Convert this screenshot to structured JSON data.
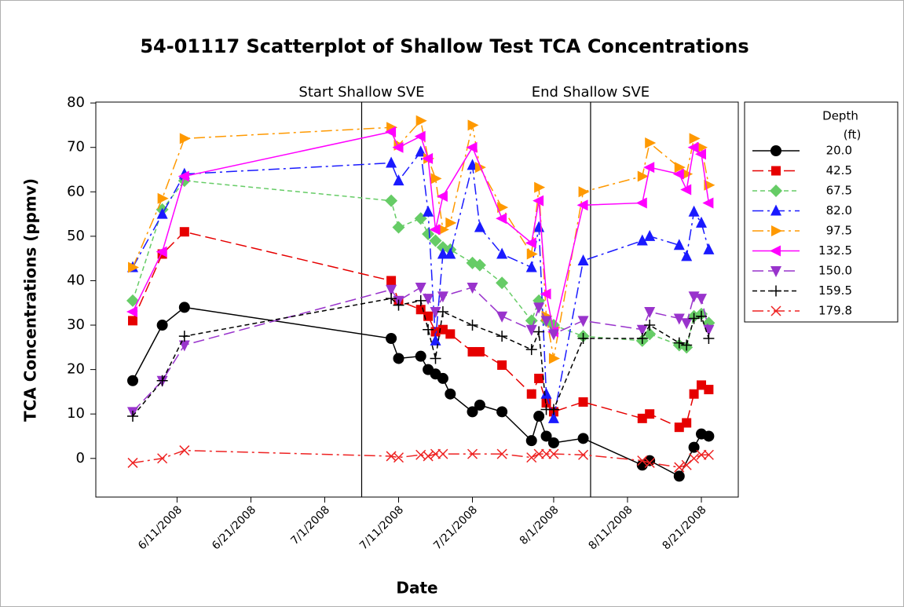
{
  "chart_data": {
    "type": "scatter",
    "title": "54-01117 Scatterplot of Shallow Test TCA Concentrations",
    "x_label": "Date",
    "y_label": "TCA Concentrations (ppmv)",
    "legend_title": [
      "Depth",
      "(ft)"
    ],
    "legend": "right",
    "xlim": [
      "2008-05-31",
      "2008-08-26"
    ],
    "ylim": [
      -8.7,
      80.2
    ],
    "xticks": [
      {
        "value": "2008-06-11",
        "label": "6/11/2008"
      },
      {
        "value": "2008-06-21",
        "label": "6/21/2008"
      },
      {
        "value": "2008-07-01",
        "label": "7/1/2008"
      },
      {
        "value": "2008-07-11",
        "label": "7/11/2008"
      },
      {
        "value": "2008-07-21",
        "label": "7/21/2008"
      },
      {
        "value": "2008-08-01",
        "label": "8/1/2008"
      },
      {
        "value": "2008-08-11",
        "label": "8/11/2008"
      },
      {
        "value": "2008-08-21",
        "label": "8/21/2008"
      }
    ],
    "yticks": [
      0,
      10,
      20,
      30,
      40,
      50,
      60,
      70,
      80
    ],
    "annotations": [
      {
        "text": "Start Shallow SVE",
        "x": "2008-07-06"
      },
      {
        "text": "End Shallow SVE",
        "x": "2008-08-06"
      }
    ],
    "series": [
      {
        "name": "20.0",
        "color": "#000000",
        "marker": "circle",
        "line": "solid",
        "x": [
          "2008-06-05",
          "2008-06-09",
          "2008-06-12",
          "2008-07-10",
          "2008-07-11",
          "2008-07-14",
          "2008-07-15",
          "2008-07-16",
          "2008-07-17",
          "2008-07-18",
          "2008-07-21",
          "2008-07-22",
          "2008-07-25",
          "2008-07-29",
          "2008-07-30",
          "2008-07-31",
          "2008-08-01",
          "2008-08-05",
          "2008-08-13",
          "2008-08-14",
          "2008-08-18",
          "2008-08-20",
          "2008-08-21",
          "2008-08-22"
        ],
        "values": [
          17.5,
          30,
          34,
          27,
          22.5,
          23,
          20,
          19,
          18,
          14.5,
          10.5,
          12,
          10.5,
          4,
          9.5,
          5,
          3.5,
          4.5,
          -1.5,
          -0.5,
          -4,
          2.5,
          5.5,
          5
        ]
      },
      {
        "name": "42.5",
        "color": "#e60000",
        "marker": "square",
        "line": "longdash",
        "x": [
          "2008-06-05",
          "2008-06-09",
          "2008-06-12",
          "2008-07-10",
          "2008-07-11",
          "2008-07-14",
          "2008-07-15",
          "2008-07-16",
          "2008-07-17",
          "2008-07-18",
          "2008-07-21",
          "2008-07-22",
          "2008-07-25",
          "2008-07-29",
          "2008-07-30",
          "2008-07-31",
          "2008-08-01",
          "2008-08-05",
          "2008-08-13",
          "2008-08-14",
          "2008-08-18",
          "2008-08-19",
          "2008-08-20",
          "2008-08-21",
          "2008-08-22"
        ],
        "values": [
          31,
          46,
          51,
          40,
          35.5,
          33.5,
          32,
          28.5,
          29,
          28,
          24,
          24,
          21,
          14.5,
          18,
          12.5,
          10.5,
          12.7,
          9,
          10,
          7,
          8,
          14.5,
          16.5,
          15.5
        ]
      },
      {
        "name": "67.5",
        "color": "#66cc66",
        "marker": "diamond",
        "line": "dash",
        "x": [
          "2008-06-05",
          "2008-06-09",
          "2008-06-12",
          "2008-07-10",
          "2008-07-11",
          "2008-07-14",
          "2008-07-15",
          "2008-07-16",
          "2008-07-17",
          "2008-07-18",
          "2008-07-21",
          "2008-07-22",
          "2008-07-25",
          "2008-07-29",
          "2008-07-30",
          "2008-07-31",
          "2008-08-01",
          "2008-08-05",
          "2008-08-13",
          "2008-08-14",
          "2008-08-18",
          "2008-08-19",
          "2008-08-20",
          "2008-08-21",
          "2008-08-22"
        ],
        "values": [
          35.5,
          56,
          62.5,
          58,
          52,
          54,
          50.5,
          49,
          47.5,
          47,
          44,
          43.5,
          39.5,
          31,
          35.5,
          31,
          30,
          27.5,
          26.5,
          28,
          25.5,
          25,
          32,
          32.5,
          30.5
        ]
      },
      {
        "name": "82.0",
        "color": "#1a1aff",
        "marker": "triangle-up",
        "line": "dashdot",
        "x": [
          "2008-06-05",
          "2008-06-09",
          "2008-06-12",
          "2008-07-10",
          "2008-07-11",
          "2008-07-14",
          "2008-07-15",
          "2008-07-16",
          "2008-07-17",
          "2008-07-18",
          "2008-07-21",
          "2008-07-22",
          "2008-07-25",
          "2008-07-29",
          "2008-07-30",
          "2008-07-31",
          "2008-08-01",
          "2008-08-05",
          "2008-08-13",
          "2008-08-14",
          "2008-08-18",
          "2008-08-19",
          "2008-08-20",
          "2008-08-21",
          "2008-08-22"
        ],
        "values": [
          43,
          55,
          64,
          66.5,
          62.5,
          69,
          55.5,
          26.5,
          46,
          46,
          66,
          52,
          46,
          43,
          52,
          14.5,
          9,
          44.5,
          49,
          50,
          48,
          45.5,
          55.5,
          53,
          47
        ]
      },
      {
        "name": "97.5",
        "color": "#ff9900",
        "marker": "triangle-right",
        "line": "dashdot",
        "x": [
          "2008-06-05",
          "2008-06-09",
          "2008-06-12",
          "2008-07-10",
          "2008-07-11",
          "2008-07-14",
          "2008-07-15",
          "2008-07-16",
          "2008-07-17",
          "2008-07-18",
          "2008-07-21",
          "2008-07-22",
          "2008-07-25",
          "2008-07-29",
          "2008-07-30",
          "2008-07-31",
          "2008-08-01",
          "2008-08-05",
          "2008-08-13",
          "2008-08-14",
          "2008-08-18",
          "2008-08-19",
          "2008-08-20",
          "2008-08-21",
          "2008-08-22"
        ],
        "values": [
          43,
          58.5,
          72,
          74.5,
          70.5,
          76,
          67.5,
          63,
          51.5,
          53,
          75,
          65.5,
          56.5,
          46,
          61,
          32,
          22.5,
          60,
          63.5,
          71,
          65.5,
          64,
          72,
          70,
          61.5
        ]
      },
      {
        "name": "132.5",
        "color": "#ff00ff",
        "marker": "triangle-left",
        "line": "solid",
        "x": [
          "2008-06-05",
          "2008-06-09",
          "2008-06-12",
          "2008-07-10",
          "2008-07-11",
          "2008-07-14",
          "2008-07-15",
          "2008-07-16",
          "2008-07-17",
          "2008-07-21",
          "2008-07-25",
          "2008-07-29",
          "2008-07-30",
          "2008-07-31",
          "2008-08-01",
          "2008-08-05",
          "2008-08-13",
          "2008-08-14",
          "2008-08-18",
          "2008-08-19",
          "2008-08-20",
          "2008-08-21",
          "2008-08-22"
        ],
        "values": [
          33,
          46.5,
          63.5,
          73.5,
          70,
          72.5,
          67.5,
          51.5,
          59,
          70,
          54,
          48.5,
          58,
          37,
          28.5,
          57,
          57.5,
          65.5,
          64,
          60.5,
          70,
          68.5,
          57.5
        ]
      },
      {
        "name": "150.0",
        "color": "#9933cc",
        "marker": "triangle-down",
        "line": "longdash",
        "x": [
          "2008-06-05",
          "2008-06-09",
          "2008-06-12",
          "2008-07-10",
          "2008-07-11",
          "2008-07-14",
          "2008-07-15",
          "2008-07-16",
          "2008-07-17",
          "2008-07-21",
          "2008-07-25",
          "2008-07-29",
          "2008-07-30",
          "2008-07-31",
          "2008-08-01",
          "2008-08-05",
          "2008-08-13",
          "2008-08-14",
          "2008-08-18",
          "2008-08-19",
          "2008-08-20",
          "2008-08-21",
          "2008-08-22"
        ],
        "values": [
          10.5,
          17.5,
          25.5,
          38,
          35.5,
          38.5,
          36,
          33,
          36.5,
          38.5,
          32,
          29,
          34,
          31,
          28,
          31,
          29,
          33,
          31.5,
          30.5,
          36.5,
          36,
          29
        ]
      },
      {
        "name": "159.5",
        "color": "#000000",
        "marker": "plus",
        "line": "dash",
        "x": [
          "2008-06-05",
          "2008-06-09",
          "2008-06-12",
          "2008-07-10",
          "2008-07-11",
          "2008-07-14",
          "2008-07-15",
          "2008-07-16",
          "2008-07-17",
          "2008-07-21",
          "2008-07-25",
          "2008-07-29",
          "2008-07-30",
          "2008-07-31",
          "2008-08-01",
          "2008-08-05",
          "2008-08-13",
          "2008-08-14",
          "2008-08-18",
          "2008-08-19",
          "2008-08-20",
          "2008-08-21",
          "2008-08-22"
        ],
        "values": [
          9.5,
          17.5,
          27.5,
          36,
          34.5,
          35.5,
          29,
          22.5,
          33,
          30,
          27.5,
          24.5,
          28.5,
          11,
          11,
          27,
          27,
          30,
          26,
          25.5,
          31.5,
          32,
          27
        ]
      },
      {
        "name": "179.8",
        "color": "#ee2222",
        "marker": "x",
        "line": "dashdot",
        "x": [
          "2008-06-05",
          "2008-06-09",
          "2008-06-12",
          "2008-07-10",
          "2008-07-11",
          "2008-07-14",
          "2008-07-15",
          "2008-07-16",
          "2008-07-17",
          "2008-07-21",
          "2008-07-25",
          "2008-07-29",
          "2008-07-30",
          "2008-07-31",
          "2008-08-01",
          "2008-08-05",
          "2008-08-13",
          "2008-08-14",
          "2008-08-18",
          "2008-08-19",
          "2008-08-20",
          "2008-08-21",
          "2008-08-22"
        ],
        "values": [
          -1,
          0,
          1.8,
          0.5,
          0.2,
          0.8,
          0.5,
          1,
          1,
          1,
          1,
          0.2,
          1,
          1,
          1,
          0.8,
          -0.5,
          -1,
          -2,
          -1.5,
          0,
          0.8,
          0.8
        ]
      }
    ]
  }
}
